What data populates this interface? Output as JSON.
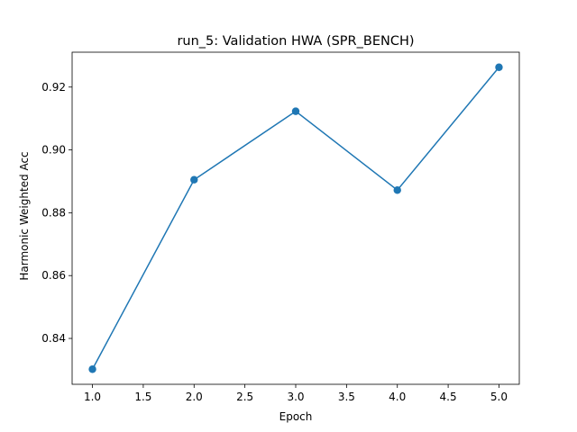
{
  "chart_data": {
    "type": "line",
    "title": "run_5: Validation HWA (SPR_BENCH)",
    "xlabel": "Epoch",
    "ylabel": "Harmonic Weighted Acc",
    "x": [
      1,
      2,
      3,
      4,
      5
    ],
    "series": [
      {
        "values": [
          0.8302,
          0.8905,
          0.9123,
          0.8872,
          0.9263
        ],
        "color": "#1f77b4",
        "marker": "circle"
      }
    ],
    "xlim": [
      0.8,
      5.2
    ],
    "ylim": [
      0.8254,
      0.9311
    ],
    "xticks": [
      "1.0",
      "1.5",
      "2.0",
      "2.5",
      "3.0",
      "3.5",
      "4.0",
      "4.5",
      "5.0"
    ],
    "yticks": [
      "0.84",
      "0.86",
      "0.88",
      "0.90",
      "0.92"
    ],
    "grid": false,
    "legend": false
  }
}
